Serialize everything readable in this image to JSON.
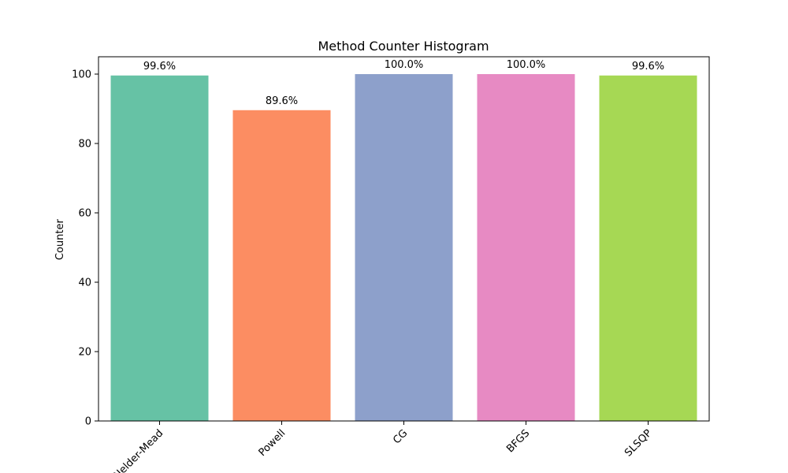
{
  "chart_data": {
    "type": "bar",
    "title": "Method Counter Histogram",
    "xlabel": "",
    "ylabel": "Counter",
    "categories": [
      "Nelder-Mead",
      "Powell",
      "CG",
      "BFGS",
      "SLSQP"
    ],
    "values": [
      99.6,
      89.6,
      100.0,
      100.0,
      99.6
    ],
    "data_labels": [
      "99.6%",
      "89.6%",
      "100.0%",
      "100.0%",
      "99.6%"
    ],
    "colors": [
      "#66c2a5",
      "#fc8d62",
      "#8da0cb",
      "#e78ac3",
      "#a6d854"
    ],
    "ylim": [
      0,
      105
    ],
    "yticks": [
      0,
      20,
      40,
      60,
      80,
      100
    ],
    "grid": false,
    "legend": "none",
    "xtick_rotation": 45
  }
}
